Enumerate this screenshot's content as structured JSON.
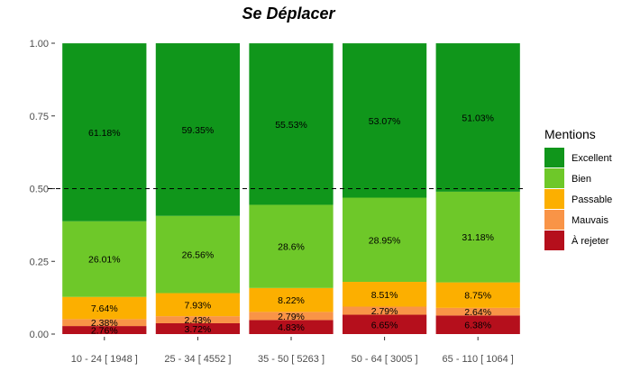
{
  "chart_data": {
    "type": "bar",
    "stacked": true,
    "title": "Se Déplacer",
    "xlabel": "",
    "ylabel": "",
    "ylim": [
      0,
      1
    ],
    "yticks": [
      "0.00",
      "0.25",
      "0.50",
      "0.75",
      "1.00"
    ],
    "reference_line": 0.5,
    "grid": false,
    "legend_position": "right",
    "legend_title": "Mentions",
    "categories": [
      "10 - 24 [ 1948 ]",
      "25 - 34 [ 4552 ]",
      "35 - 50 [ 5263 ]",
      "50 - 64 [ 3005 ]",
      "65 - 110 [ 1064 ]"
    ],
    "series": [
      {
        "name": "Excellent",
        "color": "#10961b",
        "values": [
          0.6118,
          0.5935,
          0.5553,
          0.5307,
          0.5103
        ],
        "labels": [
          "61.18%",
          "59.35%",
          "55.53%",
          "53.07%",
          "51.03%"
        ]
      },
      {
        "name": "Bien",
        "color": "#6ec829",
        "values": [
          0.2601,
          0.2656,
          0.286,
          0.2895,
          0.3118
        ],
        "labels": [
          "26.01%",
          "26.56%",
          "28.6%",
          "28.95%",
          "31.18%"
        ]
      },
      {
        "name": "Passable",
        "color": "#fcaf00",
        "values": [
          0.0764,
          0.0793,
          0.0822,
          0.0851,
          0.0875
        ],
        "labels": [
          "7.64%",
          "7.93%",
          "8.22%",
          "8.51%",
          "8.75%"
        ]
      },
      {
        "name": "Mauvais",
        "color": "#f99447",
        "values": [
          0.0238,
          0.0243,
          0.0279,
          0.0279,
          0.0264
        ],
        "labels": [
          "2.38%",
          "2.43%",
          "2.79%",
          "2.79%",
          "2.64%"
        ]
      },
      {
        "name": "À rejeter",
        "color": "#b50f1c",
        "values": [
          0.0276,
          0.0372,
          0.0483,
          0.0665,
          0.0638
        ],
        "labels": [
          "2.76%",
          "3.72%",
          "4.83%",
          "6.65%",
          "6.38%"
        ]
      }
    ]
  }
}
